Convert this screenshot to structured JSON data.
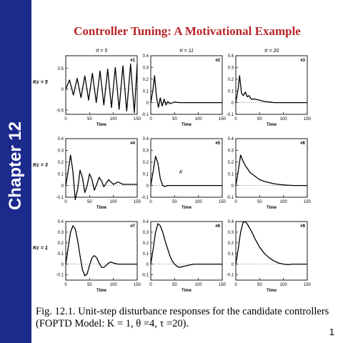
{
  "sidebar": {
    "chapter_label": "Chapter 12"
  },
  "slide": {
    "title": "Controller Tuning:  A Motivational Example",
    "page_number": "1"
  },
  "caption": {
    "line1": "Fig. 12.1. Unit-step disturbance responses for the candidate controllers",
    "line2": "(FOPTD Model: K = 1, θ =4, τ =20)."
  },
  "figure": {
    "column_headers": [
      "τI = 5",
      "τI = 11",
      "τI = 20"
    ],
    "row_labels": [
      "Kc = 5",
      "Kc = 3",
      "Kc = 1"
    ],
    "x_axis_label": "Time",
    "x_ticks": [
      0,
      50,
      100,
      150
    ],
    "y_axes": {
      "row1_col1": [
        -0.5,
        0,
        0.5
      ],
      "standard": [
        -0.1,
        0,
        0.1,
        0.2,
        0.3,
        0.4
      ]
    },
    "panel_labels": [
      "#1",
      "#2",
      "#3",
      "#4",
      "#5",
      "#6",
      "#7",
      "#8",
      "#9"
    ],
    "annotation_panel5": "K"
  },
  "chart_data": {
    "type": "line",
    "x_range": [
      0,
      150
    ],
    "panels": [
      {
        "id": "#1",
        "Kc": 5,
        "tauI": 5,
        "ylim": [
          -0.6,
          0.8
        ],
        "x": [
          0,
          8,
          16,
          24,
          32,
          40,
          48,
          56,
          64,
          72,
          80,
          88,
          96,
          104,
          112,
          120,
          128,
          136,
          144,
          150
        ],
        "y": [
          0,
          0.22,
          -0.14,
          0.26,
          -0.2,
          0.32,
          -0.26,
          0.38,
          -0.32,
          0.44,
          -0.38,
          0.48,
          -0.44,
          0.52,
          -0.48,
          0.56,
          -0.52,
          0.6,
          -0.56,
          0.6
        ]
      },
      {
        "id": "#2",
        "Kc": 5,
        "tauI": 11,
        "ylim": [
          -0.1,
          0.4
        ],
        "x": [
          0,
          5,
          8,
          12,
          16,
          20,
          24,
          28,
          32,
          36,
          40,
          50,
          60,
          80,
          100,
          150
        ],
        "y": [
          0,
          0.12,
          0.23,
          0.05,
          -0.04,
          0.04,
          -0.03,
          0.03,
          -0.02,
          0.01,
          -0.01,
          0.005,
          0,
          0,
          0,
          0
        ]
      },
      {
        "id": "#3",
        "Kc": 5,
        "tauI": 20,
        "ylim": [
          -0.1,
          0.4
        ],
        "x": [
          0,
          5,
          8,
          12,
          16,
          20,
          24,
          28,
          32,
          40,
          50,
          60,
          80,
          100,
          150
        ],
        "y": [
          0,
          0.12,
          0.23,
          0.08,
          0.06,
          0.09,
          0.05,
          0.06,
          0.03,
          0.03,
          0.02,
          0.01,
          0,
          0,
          0
        ]
      },
      {
        "id": "#4",
        "Kc": 3,
        "tauI": 5,
        "ylim": [
          -0.1,
          0.4
        ],
        "x": [
          0,
          5,
          10,
          15,
          20,
          25,
          30,
          35,
          40,
          45,
          50,
          55,
          60,
          65,
          70,
          75,
          80,
          85,
          90,
          95,
          100,
          105,
          110,
          115,
          120,
          150
        ],
        "y": [
          0,
          0.12,
          0.26,
          0.12,
          -0.12,
          -0.03,
          0.13,
          0.07,
          -0.06,
          0.0,
          0.1,
          0.05,
          -0.04,
          0.01,
          0.07,
          0.04,
          -0.01,
          0.02,
          0.05,
          0.03,
          0.01,
          0.02,
          0.03,
          0.02,
          0.01,
          0.01
        ]
      },
      {
        "id": "#5",
        "Kc": 3,
        "tauI": 11,
        "ylim": [
          -0.1,
          0.4
        ],
        "x": [
          0,
          5,
          10,
          15,
          20,
          25,
          30,
          35,
          40,
          50,
          60,
          80,
          100,
          150
        ],
        "y": [
          0,
          0.12,
          0.25,
          0.19,
          0.06,
          0.0,
          -0.01,
          0.0,
          0.0,
          0.0,
          0,
          0,
          0,
          0
        ]
      },
      {
        "id": "#6",
        "Kc": 3,
        "tauI": 20,
        "ylim": [
          -0.1,
          0.4
        ],
        "x": [
          0,
          5,
          10,
          15,
          20,
          25,
          30,
          40,
          50,
          60,
          70,
          80,
          90,
          100,
          120,
          150
        ],
        "y": [
          0,
          0.12,
          0.26,
          0.21,
          0.17,
          0.14,
          0.11,
          0.08,
          0.05,
          0.035,
          0.025,
          0.015,
          0.01,
          0.005,
          0,
          0
        ]
      },
      {
        "id": "#7",
        "Kc": 1,
        "tauI": 5,
        "ylim": [
          -0.15,
          0.4
        ],
        "x": [
          0,
          5,
          10,
          15,
          20,
          25,
          30,
          35,
          40,
          45,
          50,
          55,
          60,
          65,
          70,
          75,
          80,
          85,
          90,
          95,
          100,
          110,
          120,
          150
        ],
        "y": [
          0,
          0.15,
          0.3,
          0.36,
          0.33,
          0.22,
          0.08,
          -0.05,
          -0.11,
          -0.09,
          -0.01,
          0.06,
          0.08,
          0.06,
          0.01,
          -0.03,
          -0.03,
          -0.01,
          0.01,
          0.02,
          0.01,
          0,
          0,
          0
        ]
      },
      {
        "id": "#8",
        "Kc": 1,
        "tauI": 11,
        "ylim": [
          -0.15,
          0.4
        ],
        "x": [
          0,
          5,
          10,
          15,
          20,
          25,
          30,
          35,
          40,
          45,
          50,
          55,
          60,
          70,
          80,
          90,
          100,
          120,
          150
        ],
        "y": [
          0,
          0.14,
          0.3,
          0.38,
          0.36,
          0.3,
          0.22,
          0.15,
          0.08,
          0.03,
          0.0,
          -0.02,
          -0.03,
          -0.02,
          -0.01,
          0,
          0,
          0,
          0
        ]
      },
      {
        "id": "#9",
        "Kc": 1,
        "tauI": 20,
        "ylim": [
          -0.15,
          0.4
        ],
        "x": [
          0,
          5,
          10,
          15,
          20,
          25,
          30,
          35,
          40,
          45,
          50,
          60,
          70,
          80,
          90,
          100,
          110,
          120,
          150
        ],
        "y": [
          0,
          0.14,
          0.3,
          0.39,
          0.4,
          0.37,
          0.33,
          0.29,
          0.24,
          0.2,
          0.16,
          0.1,
          0.06,
          0.03,
          0.01,
          0.0,
          -0.005,
          0,
          0
        ]
      }
    ]
  }
}
